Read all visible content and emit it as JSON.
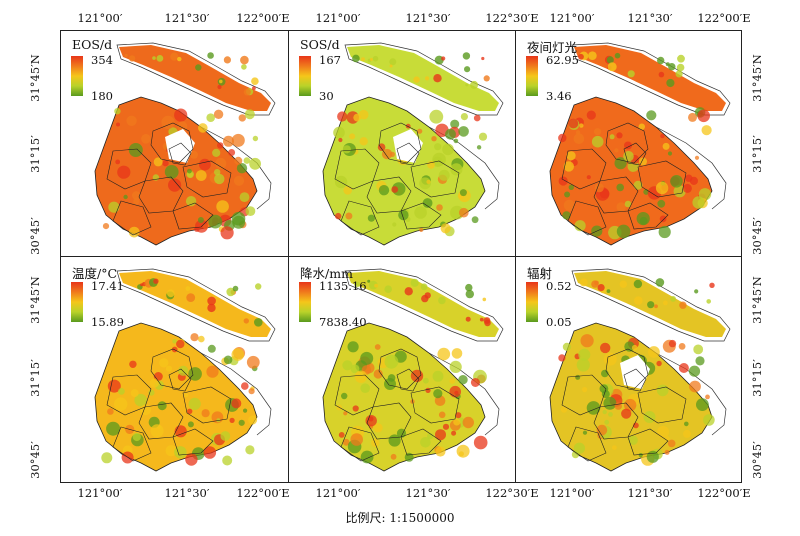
{
  "axes": {
    "top_ticks": [
      {
        "label": "121°00′"
      },
      {
        "label": "121°30′"
      },
      {
        "label": "122°00′E"
      },
      {
        "label": "121°00′"
      },
      {
        "label": "121°30′"
      },
      {
        "label": "122°30′E"
      },
      {
        "label": "121°00′"
      },
      {
        "label": "121°30′"
      },
      {
        "label": "122°00′E"
      }
    ],
    "bottom_ticks": [
      {
        "label": "121°00′"
      },
      {
        "label": "121°30′"
      },
      {
        "label": "122°00′E"
      },
      {
        "label": "121°00′"
      },
      {
        "label": "121°30′"
      },
      {
        "label": "122°30′E"
      },
      {
        "label": "121°00′"
      },
      {
        "label": "121°30′"
      },
      {
        "label": "122°00′E"
      }
    ],
    "left_ticks": [
      "31°45′N",
      "31°15′",
      "30°45′",
      "31°45′N",
      "31°15′",
      "30°45′"
    ],
    "right_ticks": [
      "31°45′N",
      "31°15′",
      "30°45′",
      "31°45′N",
      "31°15′",
      "30°45′"
    ]
  },
  "panels": [
    {
      "title": "EOS/d",
      "max": "354",
      "min": "180",
      "colors": [
        "#e8361a",
        "#f07a1c",
        "#f5c61a",
        "#b9d22a",
        "#5a9a1e"
      ],
      "fill": "#ee6a1c"
    },
    {
      "title": "SOS/d",
      "max": "167",
      "min": "30",
      "colors": [
        "#e8361a",
        "#f07a1c",
        "#f5c61a",
        "#b9d22a",
        "#5a9a1e"
      ],
      "fill": "#c8dc38"
    },
    {
      "title": "夜间灯光",
      "max": "62.95",
      "min": "3.46",
      "colors": [
        "#e8361a",
        "#f07a1c",
        "#f5c61a",
        "#b9d22a",
        "#5a9a1e"
      ],
      "fill": "#f06a1c"
    },
    {
      "title": "温度/°C",
      "max": "17.41",
      "min": "15.89",
      "colors": [
        "#e8361a",
        "#f07a1c",
        "#f5c61a",
        "#b9d22a",
        "#5a9a1e"
      ],
      "fill": "#f5b81c"
    },
    {
      "title": "降水/mm",
      "max": "1135.16",
      "min": "7838.40",
      "colors": [
        "#e8361a",
        "#f07a1c",
        "#f5c61a",
        "#b9d22a",
        "#5a9a1e"
      ],
      "fill": "#d8d22a"
    },
    {
      "title": "辐射",
      "max": "0.52",
      "min": "0.05",
      "colors": [
        "#e8361a",
        "#f07a1c",
        "#f5c61a",
        "#b9d22a",
        "#5a9a1e"
      ],
      "fill": "#e4c424"
    }
  ],
  "scale_text": "比例尺: 1:1500000"
}
